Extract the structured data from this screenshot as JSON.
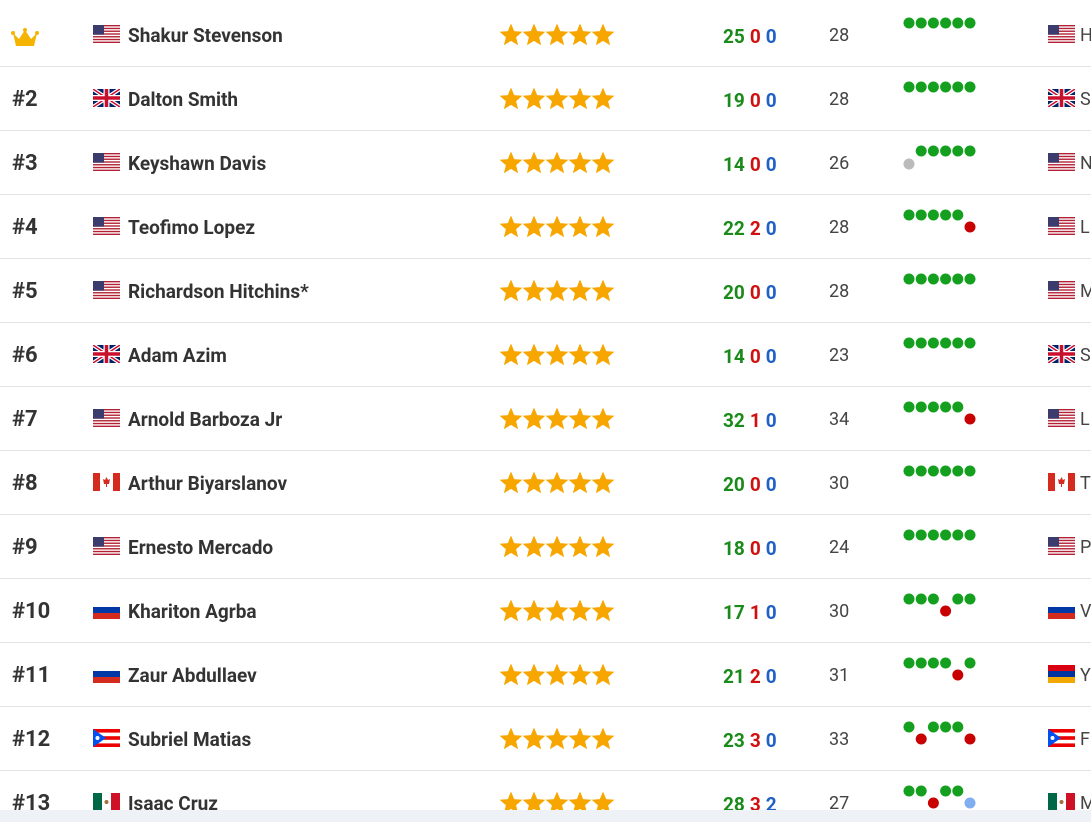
{
  "rows": [
    {
      "name": "Shakur Stevenson",
      "wins": 25,
      "losses": 0,
      "draws": 0,
      "age": 28,
      "location": "H"
    },
    {
      "rank": "#2",
      "name": "Dalton Smith",
      "wins": 19,
      "losses": 0,
      "draws": 0,
      "age": 28,
      "location": "S"
    },
    {
      "rank": "#3",
      "name": "Keyshawn Davis",
      "wins": 14,
      "losses": 0,
      "draws": 0,
      "age": 26,
      "location": "N"
    },
    {
      "rank": "#4",
      "name": "Teofimo Lopez",
      "wins": 22,
      "losses": 2,
      "draws": 0,
      "age": 28,
      "location": "L"
    },
    {
      "rank": "#5",
      "name": "Richardson Hitchins*",
      "wins": 20,
      "losses": 0,
      "draws": 0,
      "age": 28,
      "location": "M"
    },
    {
      "rank": "#6",
      "name": "Adam Azim",
      "wins": 14,
      "losses": 0,
      "draws": 0,
      "age": 23,
      "location": "S"
    },
    {
      "rank": "#7",
      "name": "Arnold Barboza Jr",
      "wins": 32,
      "losses": 1,
      "draws": 0,
      "age": 34,
      "location": "L"
    },
    {
      "rank": "#8",
      "name": "Arthur Biyarslanov",
      "wins": 20,
      "losses": 0,
      "draws": 0,
      "age": 30,
      "location": "T"
    },
    {
      "rank": "#9",
      "name": "Ernesto Mercado",
      "wins": 18,
      "losses": 0,
      "draws": 0,
      "age": 24,
      "location": "P"
    },
    {
      "rank": "#10",
      "name": "Khariton Agrba",
      "wins": 17,
      "losses": 1,
      "draws": 0,
      "age": 30,
      "location": "V"
    },
    {
      "rank": "#11",
      "name": "Zaur Abdullaev",
      "wins": 21,
      "losses": 2,
      "draws": 0,
      "age": 31,
      "location": "Y"
    },
    {
      "rank": "#12",
      "name": "Subriel Matias",
      "wins": 23,
      "losses": 3,
      "draws": 0,
      "age": 33,
      "location": "F"
    },
    {
      "rank": "#13",
      "name": "Isaac Cruz",
      "wins": 28,
      "losses": 3,
      "draws": 2,
      "age": 27,
      "location": "M"
    }
  ]
}
